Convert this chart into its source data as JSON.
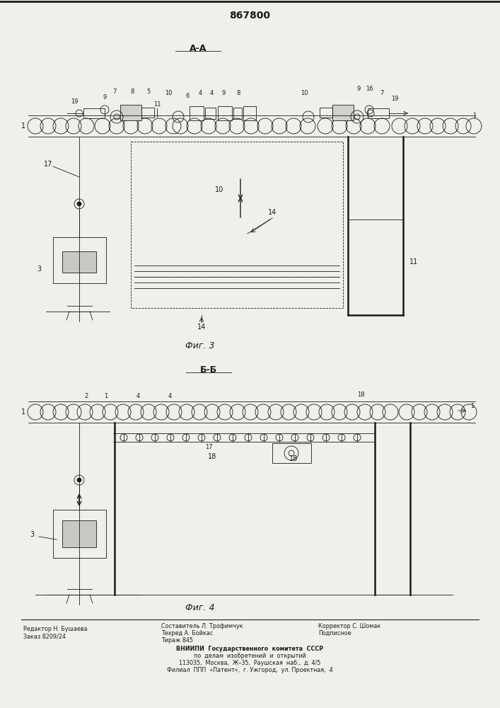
{
  "patent_number": "867800",
  "background_color": "#f0f0eb",
  "line_color": "#1a1a1a",
  "fig3_label": "А-А",
  "fig3_caption": "Фиг. 3",
  "fig4_label": "Б-Б",
  "fig4_caption": "Фиг. 4",
  "footer_left_line1": "Редактор Н. Бушаева",
  "footer_left_line2": "Заказ 8209/24",
  "footer_mid_line1": "Составитель Л. Трофимчук",
  "footer_mid_line2": "Техред А. Бойкас",
  "footer_mid_line3": "Тираж 845",
  "footer_right_line1": "Корректор С. Шомак",
  "footer_right_line2": "Подписное",
  "footer_vniiipi_line1": "ВНИИПИ  Государственного  комитета  СССР",
  "footer_vniiipi_line2": "по  делам  изобретений  и  открытий",
  "footer_vniiipi_line3": "113035,  Москва,  Ж–35,  Раушская  наб.,  д. 4/5",
  "footer_vniiipi_line4": "Филиал  ППП  «Патент»,  г. Ужгород,  ул. Проектная,  4"
}
